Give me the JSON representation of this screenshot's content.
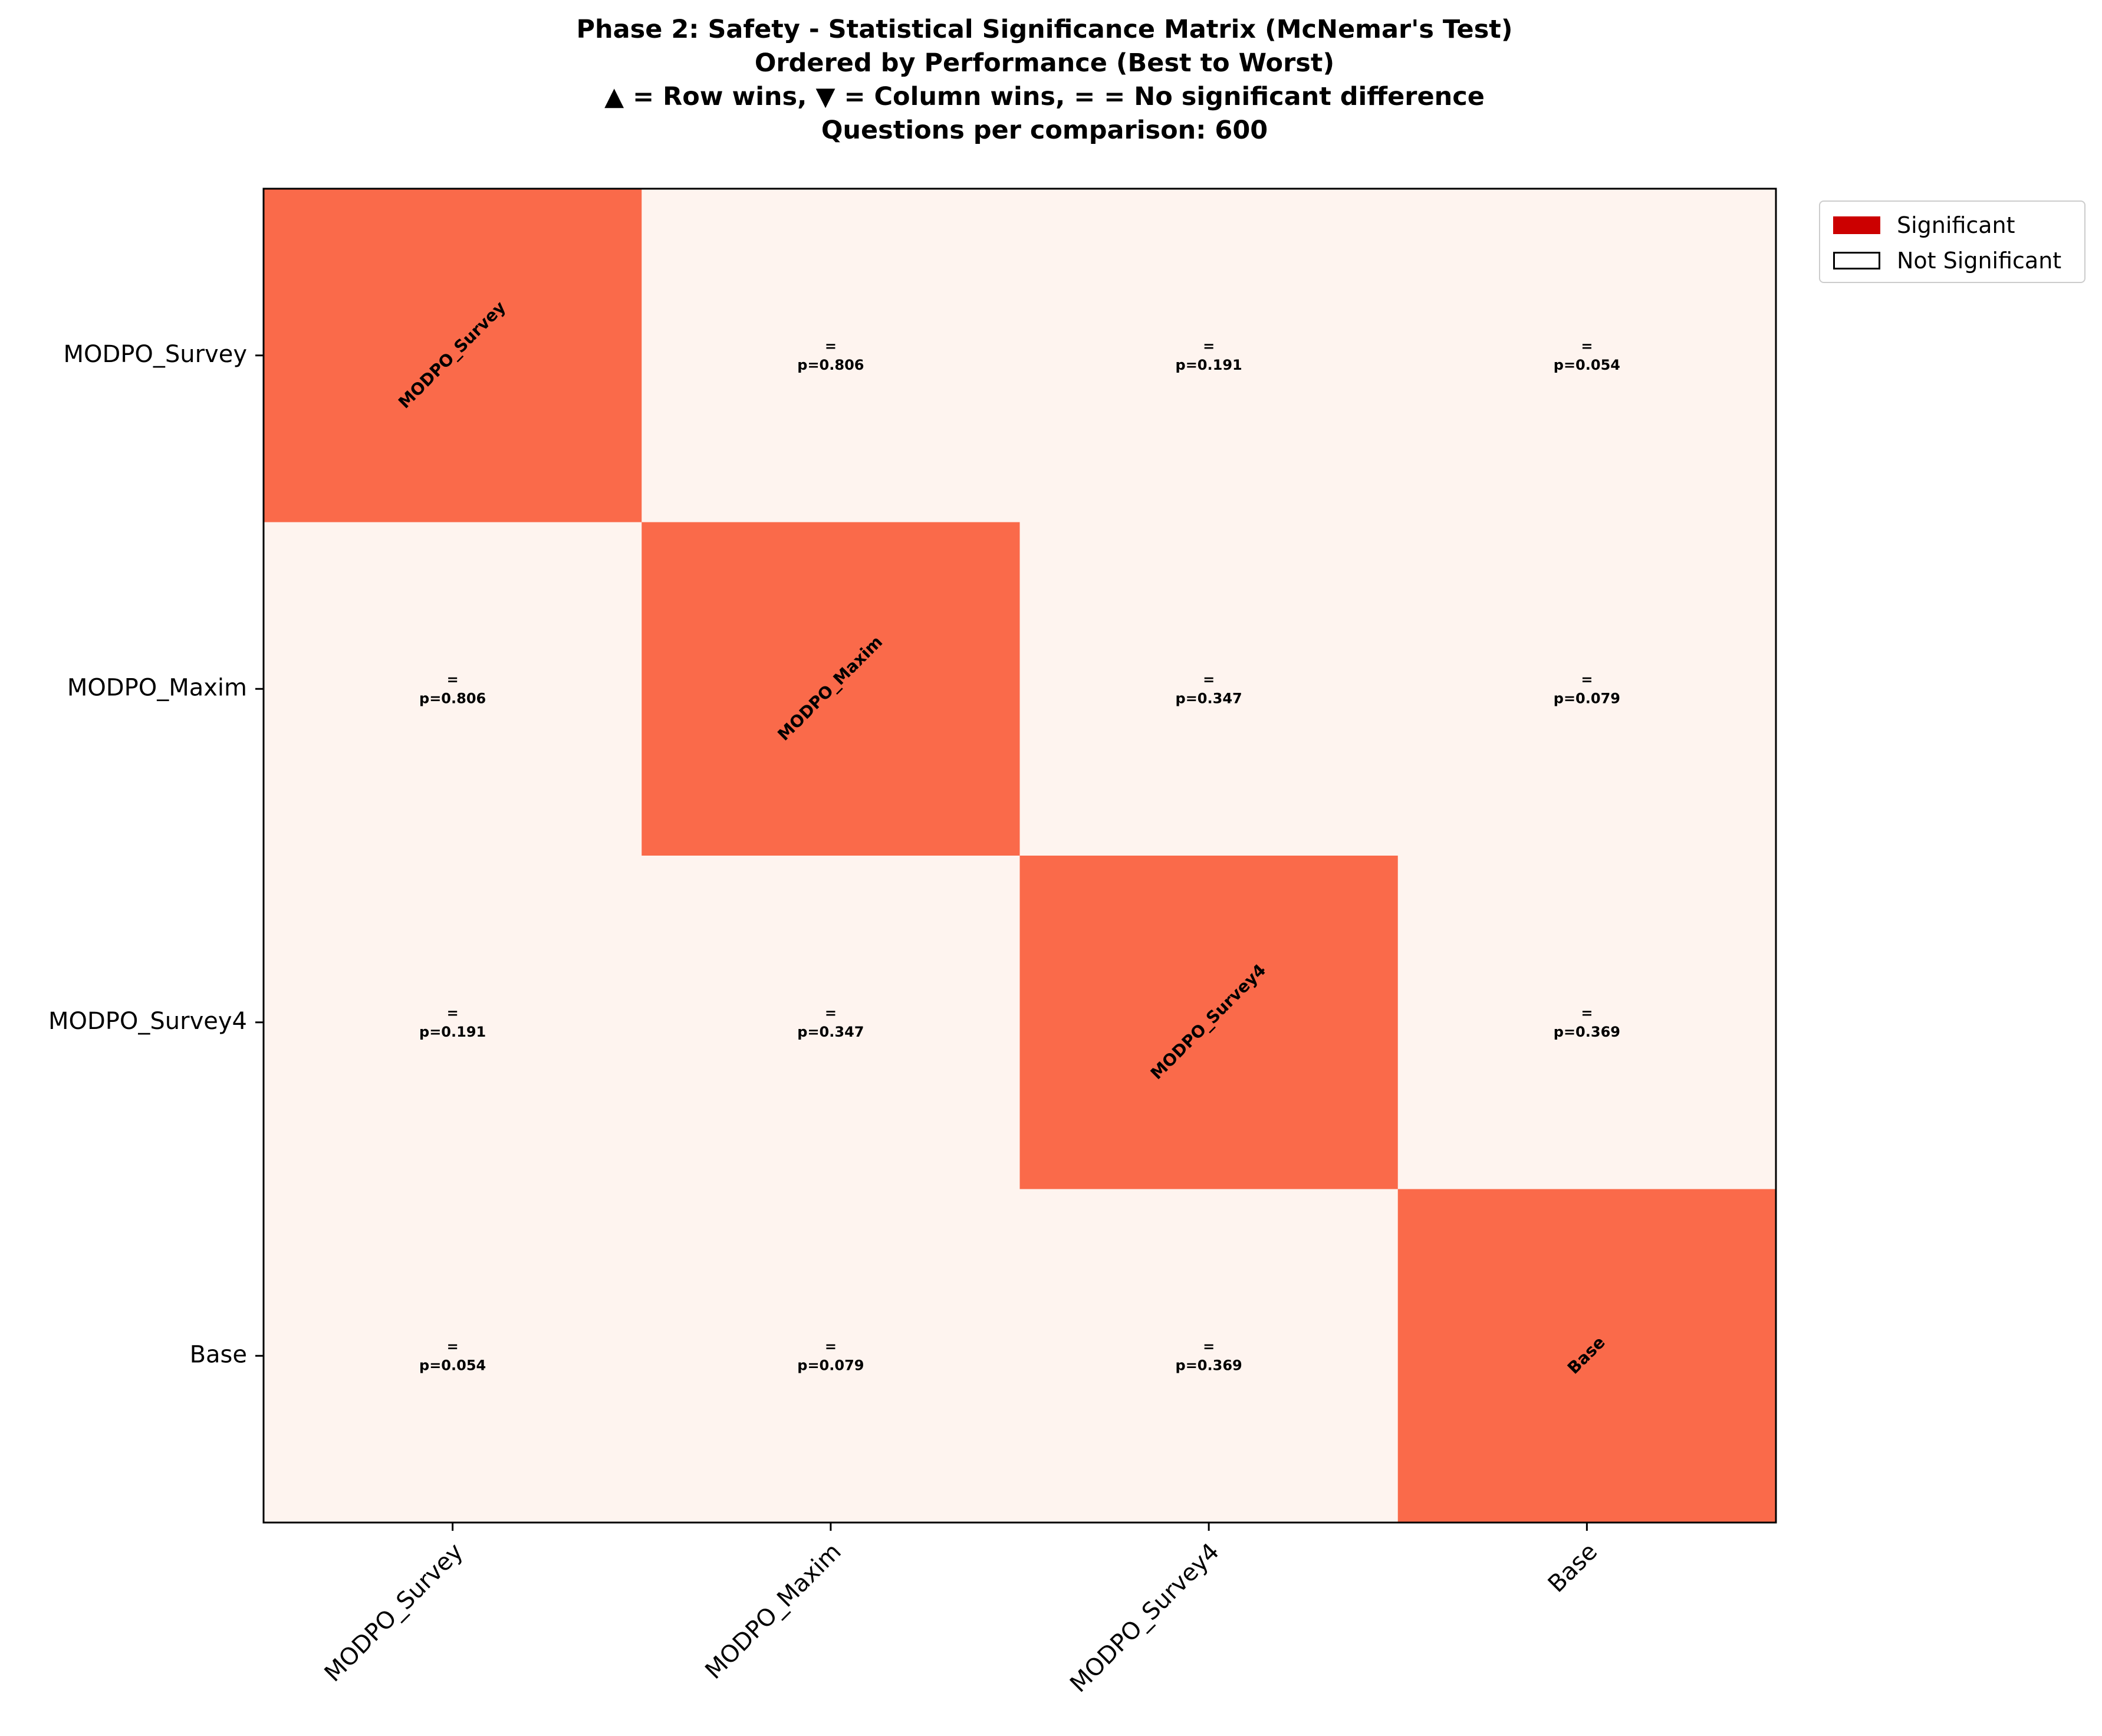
{
  "chart_data": {
    "type": "heatmap",
    "title_lines": [
      "Phase 2: Safety - Statistical Significance Matrix (McNemar's Test)",
      "Ordered by Performance (Best to Worst)",
      "▲ = Row wins, ▼ = Column wins, = = No significant difference",
      "Questions per comparison: 600"
    ],
    "row_labels": [
      "MODPO_Survey",
      "MODPO_Maxim",
      "MODPO_Survey4",
      "Base"
    ],
    "col_labels": [
      "MODPO_Survey",
      "MODPO_Maxim",
      "MODPO_Survey4",
      "Base"
    ],
    "p_values": [
      [
        null,
        0.806,
        0.191,
        0.054
      ],
      [
        0.806,
        null,
        0.347,
        0.079
      ],
      [
        0.191,
        0.347,
        null,
        0.369
      ],
      [
        0.054,
        0.079,
        0.369,
        null
      ]
    ],
    "cell_text": [
      [
        [
          "MODPO_Survey"
        ],
        [
          "=",
          "p=0.806"
        ],
        [
          "=",
          "p=0.191"
        ],
        [
          "=",
          "p=0.054"
        ]
      ],
      [
        [
          "=",
          "p=0.806"
        ],
        [
          "MODPO_Maxim"
        ],
        [
          "=",
          "p=0.347"
        ],
        [
          "=",
          "p=0.079"
        ]
      ],
      [
        [
          "=",
          "p=0.191"
        ],
        [
          "=",
          "p=0.347"
        ],
        [
          "MODPO_Survey4"
        ],
        [
          "=",
          "p=0.369"
        ]
      ],
      [
        [
          "=",
          "p=0.054"
        ],
        [
          "=",
          "p=0.079"
        ],
        [
          "=",
          "p=0.369"
        ],
        [
          "Base"
        ]
      ]
    ],
    "colors": {
      "diagonal": "#fa6a4a",
      "not_significant": "#fef4ef",
      "legend_significant": "#cc0000",
      "legend_not_significant": "#ffffff"
    },
    "legend": {
      "placement": "outside-top-right",
      "entries": [
        "Significant",
        "Not Significant"
      ]
    },
    "grid": false
  }
}
